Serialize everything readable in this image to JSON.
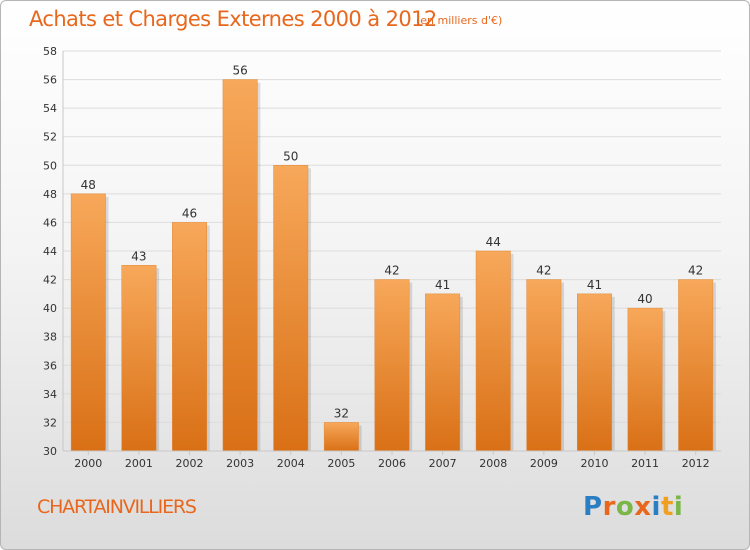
{
  "header": {
    "title": "Achats et Charges Externes 2000 à 2012",
    "subtitle": "(en milliers d'€)"
  },
  "footer": {
    "place": "CHARTAINVILLIERS",
    "logo_text": "Proxiti",
    "logo_letters": [
      {
        "char": "P",
        "color": "#2a7fc4"
      },
      {
        "char": "r",
        "color": "#e8671c"
      },
      {
        "char": "o",
        "color": "#7ab648"
      },
      {
        "char": "x",
        "color": "#e8671c"
      },
      {
        "char": "i",
        "color": "#2a7fc4"
      },
      {
        "char": "t",
        "color": "#f0a020"
      },
      {
        "char": "i",
        "color": "#7ab648"
      }
    ]
  },
  "colors": {
    "accent": "#e8671c",
    "bar_top": "#f7a85a",
    "bar_bottom": "#d97016",
    "grid": "#dcdcdc",
    "axis_text": "#333333"
  },
  "chart_data": {
    "type": "bar",
    "categories": [
      "2000",
      "2001",
      "2002",
      "2003",
      "2004",
      "2005",
      "2006",
      "2007",
      "2008",
      "2009",
      "2010",
      "2011",
      "2012"
    ],
    "values": [
      48,
      43,
      46,
      56,
      50,
      32,
      42,
      41,
      44,
      42,
      41,
      40,
      42
    ],
    "ylim": [
      30,
      58
    ],
    "yticks": [
      30,
      32,
      34,
      36,
      38,
      40,
      42,
      44,
      46,
      48,
      50,
      52,
      54,
      56,
      58
    ],
    "grid": true,
    "legend": "none"
  }
}
